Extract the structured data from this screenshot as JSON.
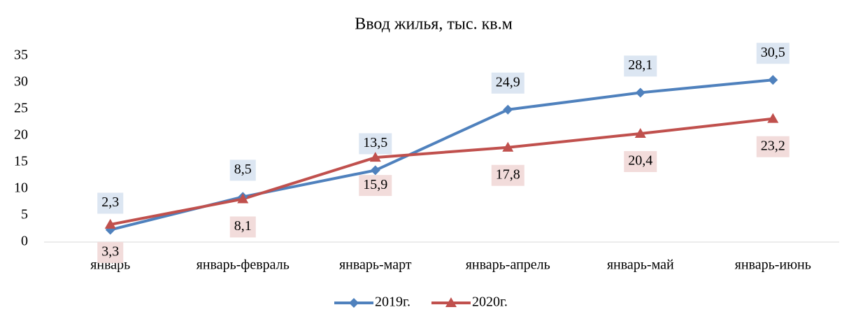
{
  "chart_data": {
    "type": "line",
    "title": "Ввод жилья, тыс. кв.м",
    "categories": [
      "январь",
      "январь-февраль",
      "январь-март",
      "январь-апрель",
      "январь-май",
      "январь-июнь"
    ],
    "series": [
      {
        "name": "2019г.",
        "color": "#4f81bd",
        "marker": "diamond",
        "label_bg": "#dce6f2",
        "values": [
          2.3,
          8.5,
          13.5,
          24.9,
          28.1,
          30.5
        ],
        "value_labels": [
          "2,3",
          "8,5",
          "13,5",
          "24,9",
          "28,1",
          "30,5"
        ]
      },
      {
        "name": "2020г.",
        "color": "#c0504d",
        "marker": "triangle",
        "label_bg": "#f2dcdb",
        "values": [
          3.3,
          8.1,
          15.9,
          17.8,
          20.4,
          23.2
        ],
        "value_labels": [
          "3,3",
          "8,1",
          "15,9",
          "17,8",
          "20,4",
          "23,2"
        ]
      }
    ],
    "ylim": [
      0,
      35
    ],
    "yticks": [
      0,
      5,
      10,
      15,
      20,
      25,
      30,
      35
    ],
    "grid": false,
    "legend": "bottom"
  }
}
